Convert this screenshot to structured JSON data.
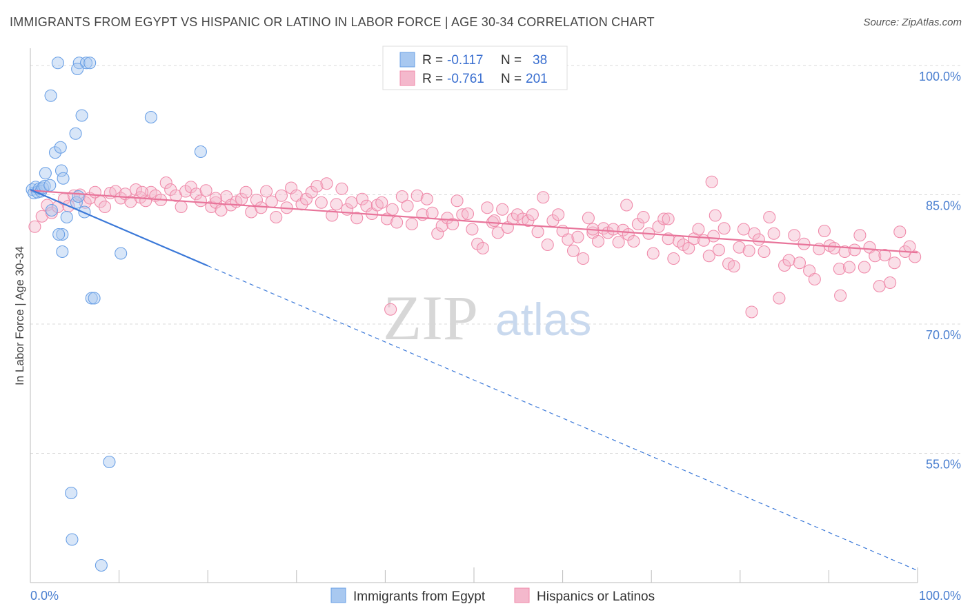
{
  "header": {
    "title": "IMMIGRANTS FROM EGYPT VS HISPANIC OR LATINO IN LABOR FORCE | AGE 30-34 CORRELATION CHART",
    "source": "Source: ZipAtlas.com"
  },
  "watermark": {
    "zip": "ZIP",
    "atlas": "atlas"
  },
  "legend": {
    "rows": [
      {
        "r_label": "R =",
        "r_value": "-0.117",
        "n_label": "N =",
        "n_value": "38",
        "color": "#a8c8f0"
      },
      {
        "r_label": "R =",
        "r_value": "-0.761",
        "n_label": "N =",
        "n_value": "201",
        "color": "#f4b8cc"
      }
    ]
  },
  "bottom_legend": {
    "items": [
      {
        "label": "Immigrants from Egypt",
        "color": "#a8c8f0"
      },
      {
        "label": "Hispanics or Latinos",
        "color": "#f4b8cc"
      }
    ]
  },
  "chart_data": {
    "type": "scatter",
    "title": "IMMIGRANTS FROM EGYPT VS HISPANIC OR LATINO IN LABOR FORCE | AGE 30-34 CORRELATION CHART",
    "xlabel": "",
    "ylabel": "In Labor Force | Age 30-34",
    "xlim": [
      0,
      100
    ],
    "ylim": [
      40,
      102
    ],
    "x_tick_labels": [
      "0.0%",
      "100.0%"
    ],
    "y_ticks": [
      100,
      85,
      70,
      55
    ],
    "y_tick_labels": [
      "100.0%",
      "85.0%",
      "70.0%",
      "55.0%"
    ],
    "grid": true,
    "legend_position": "top-center",
    "series": [
      {
        "name": "Immigrants from Egypt",
        "color": "#6aa0e6",
        "fill": "#a8c8f0",
        "line_color": "#3a78d8",
        "trend": {
          "x0": 0,
          "y0": 85.6,
          "x1": 100,
          "y1": 41.4,
          "solid_until": 20
        },
        "points": [
          [
            0.2,
            85.6
          ],
          [
            0.4,
            85.2
          ],
          [
            0.6,
            85.9
          ],
          [
            0.8,
            85.3
          ],
          [
            1.0,
            85.7
          ],
          [
            1.2,
            85.4
          ],
          [
            1.4,
            85.8
          ],
          [
            1.6,
            86.0
          ],
          [
            2.2,
            86.1
          ],
          [
            1.7,
            87.5
          ],
          [
            2.4,
            83.2
          ],
          [
            2.8,
            89.9
          ],
          [
            3.4,
            90.5
          ],
          [
            3.5,
            87.8
          ],
          [
            3.7,
            86.9
          ],
          [
            4.1,
            82.4
          ],
          [
            3.6,
            80.4
          ],
          [
            3.6,
            78.4
          ],
          [
            3.2,
            80.4
          ],
          [
            5.2,
            84.1
          ],
          [
            5.4,
            84.8
          ],
          [
            6.1,
            83.0
          ],
          [
            5.1,
            92.1
          ],
          [
            2.3,
            96.5
          ],
          [
            3.1,
            100.3
          ],
          [
            5.5,
            100.3
          ],
          [
            6.3,
            100.3
          ],
          [
            6.7,
            100.3
          ],
          [
            5.3,
            99.6
          ],
          [
            5.8,
            94.2
          ],
          [
            13.6,
            94.0
          ],
          [
            19.2,
            90.0
          ],
          [
            10.2,
            78.2
          ],
          [
            6.9,
            73.0
          ],
          [
            7.2,
            73.0
          ],
          [
            8.9,
            54.0
          ],
          [
            4.6,
            50.4
          ],
          [
            4.7,
            45.0
          ],
          [
            8.0,
            42.0
          ]
        ]
      },
      {
        "name": "Hispanics or Latinos",
        "color": "#f08aaa",
        "fill": "#f4b8cc",
        "line_color": "#e8749a",
        "trend": {
          "x0": 0,
          "y0": 85.5,
          "x1": 100,
          "y1": 78.3
        },
        "points": [
          [
            0.5,
            81.3
          ],
          [
            1.3,
            82.5
          ],
          [
            1.9,
            83.8
          ],
          [
            2.4,
            82.9
          ],
          [
            3.1,
            83.6
          ],
          [
            3.8,
            84.5
          ],
          [
            4.3,
            83.7
          ],
          [
            4.9,
            84.9
          ],
          [
            5.6,
            85.0
          ],
          [
            6.2,
            84.1
          ],
          [
            6.7,
            84.6
          ],
          [
            7.3,
            85.3
          ],
          [
            7.9,
            84.2
          ],
          [
            8.4,
            83.6
          ],
          [
            9.0,
            85.2
          ],
          [
            9.6,
            85.4
          ],
          [
            10.2,
            84.6
          ],
          [
            10.7,
            85.1
          ],
          [
            11.3,
            84.2
          ],
          [
            11.9,
            85.6
          ],
          [
            12.4,
            84.7
          ],
          [
            13.0,
            84.3
          ],
          [
            13.6,
            85.3
          ],
          [
            14.1,
            84.9
          ],
          [
            14.7,
            84.4
          ],
          [
            15.3,
            86.4
          ],
          [
            15.8,
            85.6
          ],
          [
            16.4,
            84.9
          ],
          [
            17.0,
            83.6
          ],
          [
            17.5,
            85.4
          ],
          [
            18.1,
            85.9
          ],
          [
            18.7,
            85.1
          ],
          [
            19.2,
            84.3
          ],
          [
            19.8,
            85.5
          ],
          [
            20.4,
            83.6
          ],
          [
            20.9,
            84.1
          ],
          [
            21.5,
            83.2
          ],
          [
            22.1,
            84.8
          ],
          [
            22.6,
            83.8
          ],
          [
            23.2,
            84.2
          ],
          [
            23.8,
            84.5
          ],
          [
            24.3,
            85.3
          ],
          [
            24.9,
            83.0
          ],
          [
            25.5,
            84.4
          ],
          [
            26.0,
            83.5
          ],
          [
            26.6,
            85.4
          ],
          [
            27.2,
            84.2
          ],
          [
            27.7,
            82.4
          ],
          [
            28.3,
            84.9
          ],
          [
            28.9,
            83.5
          ],
          [
            29.4,
            85.8
          ],
          [
            30.0,
            84.9
          ],
          [
            30.6,
            83.9
          ],
          [
            31.1,
            84.5
          ],
          [
            31.7,
            85.3
          ],
          [
            32.3,
            86.0
          ],
          [
            32.8,
            84.1
          ],
          [
            33.4,
            86.3
          ],
          [
            34.0,
            82.6
          ],
          [
            34.5,
            83.9
          ],
          [
            35.1,
            85.7
          ],
          [
            35.7,
            83.3
          ],
          [
            36.2,
            84.1
          ],
          [
            36.8,
            82.3
          ],
          [
            37.4,
            84.5
          ],
          [
            37.9,
            83.7
          ],
          [
            38.5,
            82.8
          ],
          [
            39.1,
            83.8
          ],
          [
            39.6,
            84.1
          ],
          [
            40.2,
            82.2
          ],
          [
            40.8,
            83.3
          ],
          [
            41.3,
            81.8
          ],
          [
            41.9,
            84.8
          ],
          [
            42.5,
            83.7
          ],
          [
            43.0,
            81.6
          ],
          [
            43.6,
            84.9
          ],
          [
            44.2,
            82.7
          ],
          [
            44.7,
            84.5
          ],
          [
            45.3,
            82.9
          ],
          [
            45.9,
            80.5
          ],
          [
            46.4,
            81.4
          ],
          [
            47.0,
            82.3
          ],
          [
            47.6,
            81.6
          ],
          [
            48.1,
            84.3
          ],
          [
            48.7,
            82.7
          ],
          [
            49.3,
            82.8
          ],
          [
            49.8,
            81.0
          ],
          [
            50.4,
            79.3
          ],
          [
            51.0,
            78.8
          ],
          [
            51.5,
            83.5
          ],
          [
            52.1,
            81.8
          ],
          [
            52.7,
            80.6
          ],
          [
            53.2,
            83.3
          ],
          [
            53.8,
            81.2
          ],
          [
            54.4,
            82.2
          ],
          [
            54.9,
            82.7
          ],
          [
            55.5,
            82.2
          ],
          [
            56.1,
            82.0
          ],
          [
            56.6,
            82.7
          ],
          [
            57.2,
            80.7
          ],
          [
            57.8,
            84.7
          ],
          [
            58.3,
            79.2
          ],
          [
            58.9,
            82.0
          ],
          [
            59.5,
            82.7
          ],
          [
            60.0,
            80.8
          ],
          [
            60.6,
            79.8
          ],
          [
            61.2,
            78.5
          ],
          [
            61.7,
            80.1
          ],
          [
            62.3,
            77.6
          ],
          [
            62.9,
            82.3
          ],
          [
            63.4,
            80.6
          ],
          [
            64.0,
            79.6
          ],
          [
            64.6,
            81.1
          ],
          [
            65.1,
            80.6
          ],
          [
            65.7,
            81.0
          ],
          [
            66.3,
            79.5
          ],
          [
            66.8,
            80.9
          ],
          [
            67.4,
            80.4
          ],
          [
            68.0,
            79.6
          ],
          [
            68.5,
            81.6
          ],
          [
            69.1,
            82.4
          ],
          [
            69.7,
            80.5
          ],
          [
            70.2,
            78.2
          ],
          [
            70.8,
            81.3
          ],
          [
            71.4,
            82.2
          ],
          [
            71.9,
            79.9
          ],
          [
            72.5,
            77.6
          ],
          [
            73.1,
            79.6
          ],
          [
            73.6,
            79.2
          ],
          [
            74.2,
            78.8
          ],
          [
            74.8,
            79.9
          ],
          [
            75.3,
            81.0
          ],
          [
            75.9,
            79.7
          ],
          [
            76.5,
            77.9
          ],
          [
            77.0,
            80.2
          ],
          [
            77.6,
            78.6
          ],
          [
            78.2,
            81.1
          ],
          [
            78.7,
            77.0
          ],
          [
            79.3,
            76.7
          ],
          [
            79.9,
            78.9
          ],
          [
            80.4,
            81.0
          ],
          [
            81.0,
            78.5
          ],
          [
            81.6,
            80.5
          ],
          [
            82.1,
            79.8
          ],
          [
            82.7,
            78.4
          ],
          [
            83.3,
            82.4
          ],
          [
            83.8,
            80.5
          ],
          [
            84.4,
            73.0
          ],
          [
            85.0,
            76.8
          ],
          [
            85.5,
            77.4
          ],
          [
            86.1,
            80.3
          ],
          [
            86.7,
            77.1
          ],
          [
            87.2,
            79.3
          ],
          [
            87.8,
            76.2
          ],
          [
            88.4,
            75.2
          ],
          [
            88.9,
            78.7
          ],
          [
            89.5,
            80.8
          ],
          [
            90.1,
            79.1
          ],
          [
            90.6,
            78.8
          ],
          [
            91.2,
            76.4
          ],
          [
            91.8,
            78.4
          ],
          [
            92.3,
            76.6
          ],
          [
            92.9,
            78.6
          ],
          [
            93.5,
            80.3
          ],
          [
            94.0,
            76.6
          ],
          [
            94.6,
            78.9
          ],
          [
            95.2,
            77.9
          ],
          [
            95.7,
            74.4
          ],
          [
            96.3,
            78.0
          ],
          [
            96.9,
            74.8
          ],
          [
            97.4,
            77.1
          ],
          [
            98.0,
            80.7
          ],
          [
            98.6,
            78.4
          ],
          [
            99.1,
            79.0
          ],
          [
            99.7,
            77.8
          ],
          [
            76.8,
            86.5
          ],
          [
            77.2,
            82.6
          ],
          [
            91.3,
            73.3
          ],
          [
            81.3,
            71.4
          ],
          [
            40.6,
            71.7
          ],
          [
            52.3,
            82.0
          ],
          [
            63.4,
            81.0
          ],
          [
            67.2,
            83.8
          ],
          [
            71.9,
            82.2
          ],
          [
            12.6,
            85.3
          ],
          [
            20.9,
            84.6
          ]
        ]
      }
    ]
  }
}
